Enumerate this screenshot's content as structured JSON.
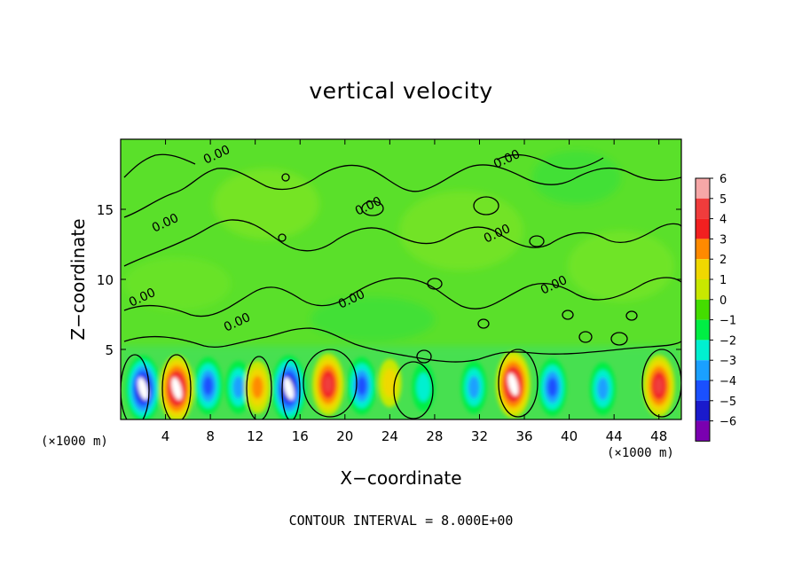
{
  "chart_data": {
    "type": "heatmap",
    "title": "vertical velocity",
    "xlabel": "X−coordinate",
    "ylabel": "Z−coordinate",
    "x_unit_label": "(×1000 m)",
    "x_ticks": [
      4,
      8,
      12,
      16,
      20,
      24,
      28,
      32,
      36,
      40,
      44,
      48
    ],
    "y_ticks": [
      5,
      10,
      15
    ],
    "xlim": [
      0,
      50
    ],
    "ylim": [
      0,
      20
    ],
    "colorbar": {
      "ticks": [
        6,
        5,
        4,
        3,
        2,
        1,
        0,
        -1,
        -2,
        -3,
        -4,
        -5,
        -6
      ],
      "tick_labels": [
        "6",
        "5",
        "4",
        "3",
        "2",
        "1",
        "0",
        "−1",
        "−2",
        "−3",
        "−4",
        "−5",
        "−6"
      ],
      "colors": [
        "#f6a7a7",
        "#f03c3c",
        "#f22020",
        "#ff8a00",
        "#f0d800",
        "#c8e800",
        "#44dd00",
        "#00ee44",
        "#00f0d0",
        "#1aa0ff",
        "#1a50ff",
        "#1a1acc",
        "#7a00b0"
      ]
    },
    "contour_labels": [
      "0.00",
      "0.00",
      "0.00",
      "0.00",
      "0.00",
      "0.00",
      "0.00",
      "0.00",
      "0.00"
    ],
    "contour_interval_text": "CONTOUR INTERVAL =  8.000E+00",
    "cells": [
      {
        "x": 2,
        "z": 2.2,
        "w": -6
      },
      {
        "x": 5,
        "z": 2.2,
        "w": 6
      },
      {
        "x": 7.8,
        "z": 2.4,
        "w": -4
      },
      {
        "x": 10.5,
        "z": 2.3,
        "w": -3
      },
      {
        "x": 12.2,
        "z": 2.3,
        "w": 3
      },
      {
        "x": 15,
        "z": 2.2,
        "w": -6
      },
      {
        "x": 18.5,
        "z": 2.5,
        "w": 5
      },
      {
        "x": 21.5,
        "z": 2.4,
        "w": -4
      },
      {
        "x": 24,
        "z": 2.6,
        "w": 2
      },
      {
        "x": 27,
        "z": 2.3,
        "w": -2
      },
      {
        "x": 31.5,
        "z": 2.3,
        "w": -3
      },
      {
        "x": 35,
        "z": 2.5,
        "w": 6
      },
      {
        "x": 38.5,
        "z": 2.3,
        "w": -4
      },
      {
        "x": 43,
        "z": 2.2,
        "w": -3
      },
      {
        "x": 48,
        "z": 2.4,
        "w": 5
      }
    ]
  }
}
